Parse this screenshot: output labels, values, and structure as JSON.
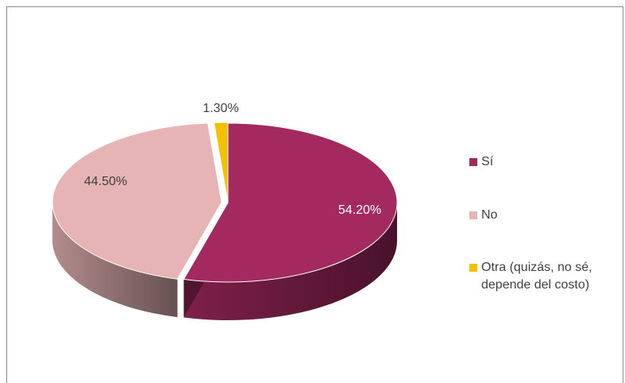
{
  "chart_data": {
    "type": "pie",
    "categories": [
      "Sí",
      "No",
      "Otra (quizás, no sé, depende del costo)"
    ],
    "values": [
      54.2,
      44.5,
      1.3
    ],
    "data_labels": [
      "54.20%",
      "44.50%",
      "1.30%"
    ],
    "colors": [
      "#a3295f",
      "#e6b4b4",
      "#f5c000"
    ],
    "legend": "right",
    "title": "",
    "xlabel": "",
    "ylabel": ""
  },
  "legend": {
    "items": [
      {
        "label": "Sí",
        "color": "#a3295f"
      },
      {
        "label": "No",
        "color": "#e6b4b4"
      },
      {
        "label": "Otra (quizás, no sé, depende del costo)",
        "color": "#f5c000"
      }
    ]
  }
}
